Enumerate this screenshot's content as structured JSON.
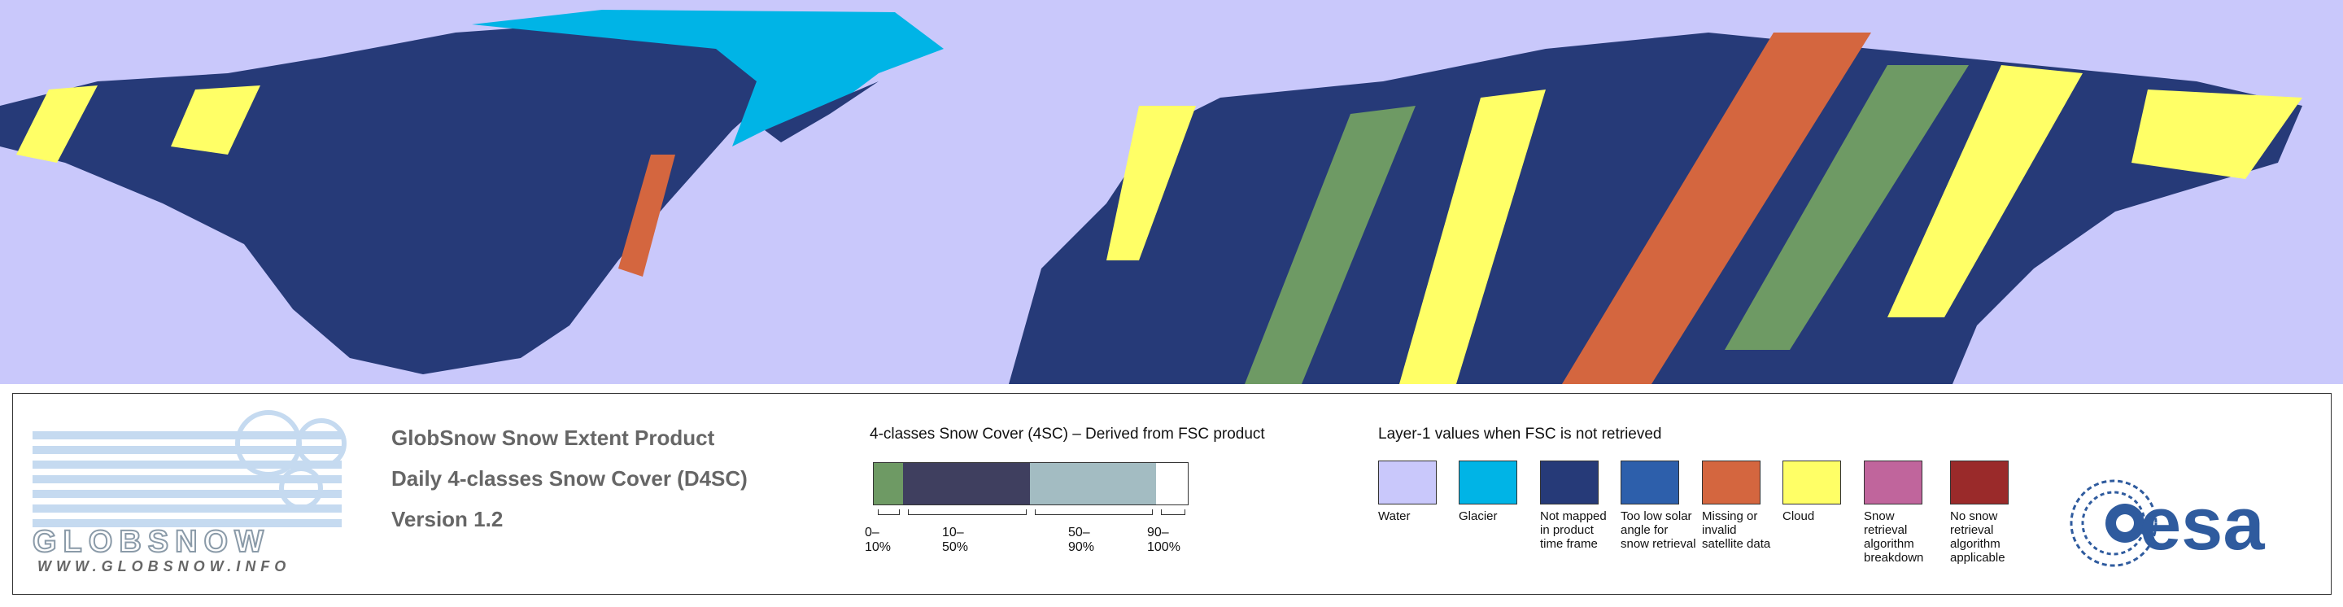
{
  "logo": {
    "name": "GLOBSNOW",
    "url": "WWW.GLOBSNOW.INFO"
  },
  "product": {
    "lines": [
      "GlobSnow Snow Extent Product",
      "Daily 4-classes Snow Cover (D4SC)",
      "Version 1.2"
    ]
  },
  "snow_cover_legend": {
    "title": "4-classes Snow Cover (4SC) – Derived from FSC product",
    "classes": [
      {
        "label": "0–10%",
        "color": "#6e9a64"
      },
      {
        "label": "10–50%",
        "color": "#3f3f5f"
      },
      {
        "label": "50–90%",
        "color": "#a3bcc2"
      },
      {
        "label": "90–100%",
        "color": "#ffffff"
      }
    ]
  },
  "layer1_legend": {
    "title": "Layer-1 values when FSC is not retrieved",
    "items": [
      {
        "label": "Water",
        "color": "#c9c8fb"
      },
      {
        "label": "Glacier",
        "color": "#00b4e6"
      },
      {
        "label": "Not mapped in product time frame",
        "color": "#263a78"
      },
      {
        "label": "Too low solar angle for snow retrieval",
        "color": "#2d5fab"
      },
      {
        "label": "Missing or invalid satellite data",
        "color": "#d4663f"
      },
      {
        "label": "Cloud",
        "color": "#ffff66"
      },
      {
        "label": "Snow retrieval algorithm breakdown",
        "color": "#c0659c"
      },
      {
        "label": "No snow retrieval algorithm applicable",
        "color": "#9a2a2a"
      }
    ]
  },
  "agency": "esa"
}
